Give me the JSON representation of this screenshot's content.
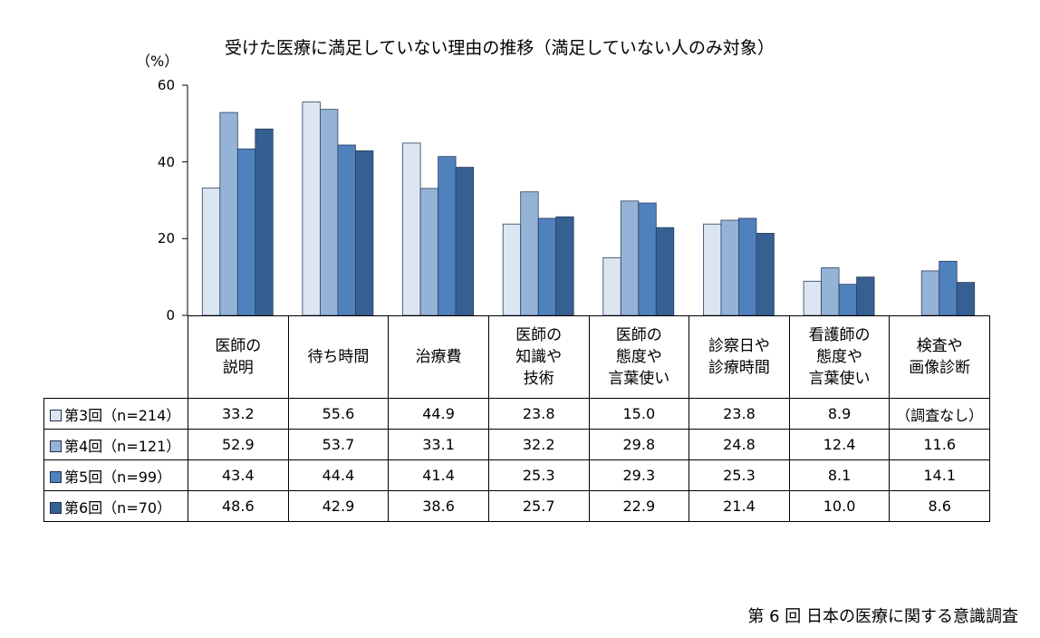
{
  "chart_data": {
    "type": "bar",
    "title": "受けた医療に満足していない理由の推移（満足していない人のみ対象）",
    "ylabel": "（%）",
    "ylim": [
      0,
      60
    ],
    "yticks": [
      "0",
      "20",
      "40",
      "60"
    ],
    "categories": [
      [
        "医師の",
        "説明"
      ],
      [
        "待ち時間"
      ],
      [
        "治療費"
      ],
      [
        "医師の",
        "知識や",
        "技術"
      ],
      [
        "医師の",
        "態度や",
        "言葉使い"
      ],
      [
        "診察日や",
        "診療時間"
      ],
      [
        "看護師の",
        "態度や",
        "言葉使い"
      ],
      [
        "検査や",
        "画像診断"
      ]
    ],
    "series": [
      {
        "name": "第3回（n=214）",
        "color": "#dce6f2",
        "values": [
          33.2,
          55.6,
          44.9,
          23.8,
          15.0,
          23.8,
          8.9,
          null
        ],
        "cells": [
          "33.2",
          "55.6",
          "44.9",
          "23.8",
          "15.0",
          "23.8",
          "8.9",
          "（調査なし）"
        ]
      },
      {
        "name": "第4回（n=121）",
        "color": "#95b3d7",
        "values": [
          52.9,
          53.7,
          33.1,
          32.2,
          29.8,
          24.8,
          12.4,
          11.6
        ],
        "cells": [
          "52.9",
          "53.7",
          "33.1",
          "32.2",
          "29.8",
          "24.8",
          "12.4",
          "11.6"
        ]
      },
      {
        "name": "第5回（n=99）",
        "color": "#4f81bd",
        "values": [
          43.4,
          44.4,
          41.4,
          25.3,
          29.3,
          25.3,
          8.1,
          14.1
        ],
        "cells": [
          "43.4",
          "44.4",
          "41.4",
          "25.3",
          "29.3",
          "25.3",
          "8.1",
          "14.1"
        ]
      },
      {
        "name": "第6回（n=70）",
        "color": "#366092",
        "values": [
          48.6,
          42.9,
          38.6,
          25.7,
          22.9,
          21.4,
          10.0,
          8.6
        ],
        "cells": [
          "48.6",
          "42.9",
          "38.6",
          "25.7",
          "22.9",
          "21.4",
          "10.0",
          "8.6"
        ]
      }
    ],
    "legend_placement": "table-rows-left",
    "grid": false
  },
  "source_note": "第 6 回 日本の医療に関する意識調査"
}
